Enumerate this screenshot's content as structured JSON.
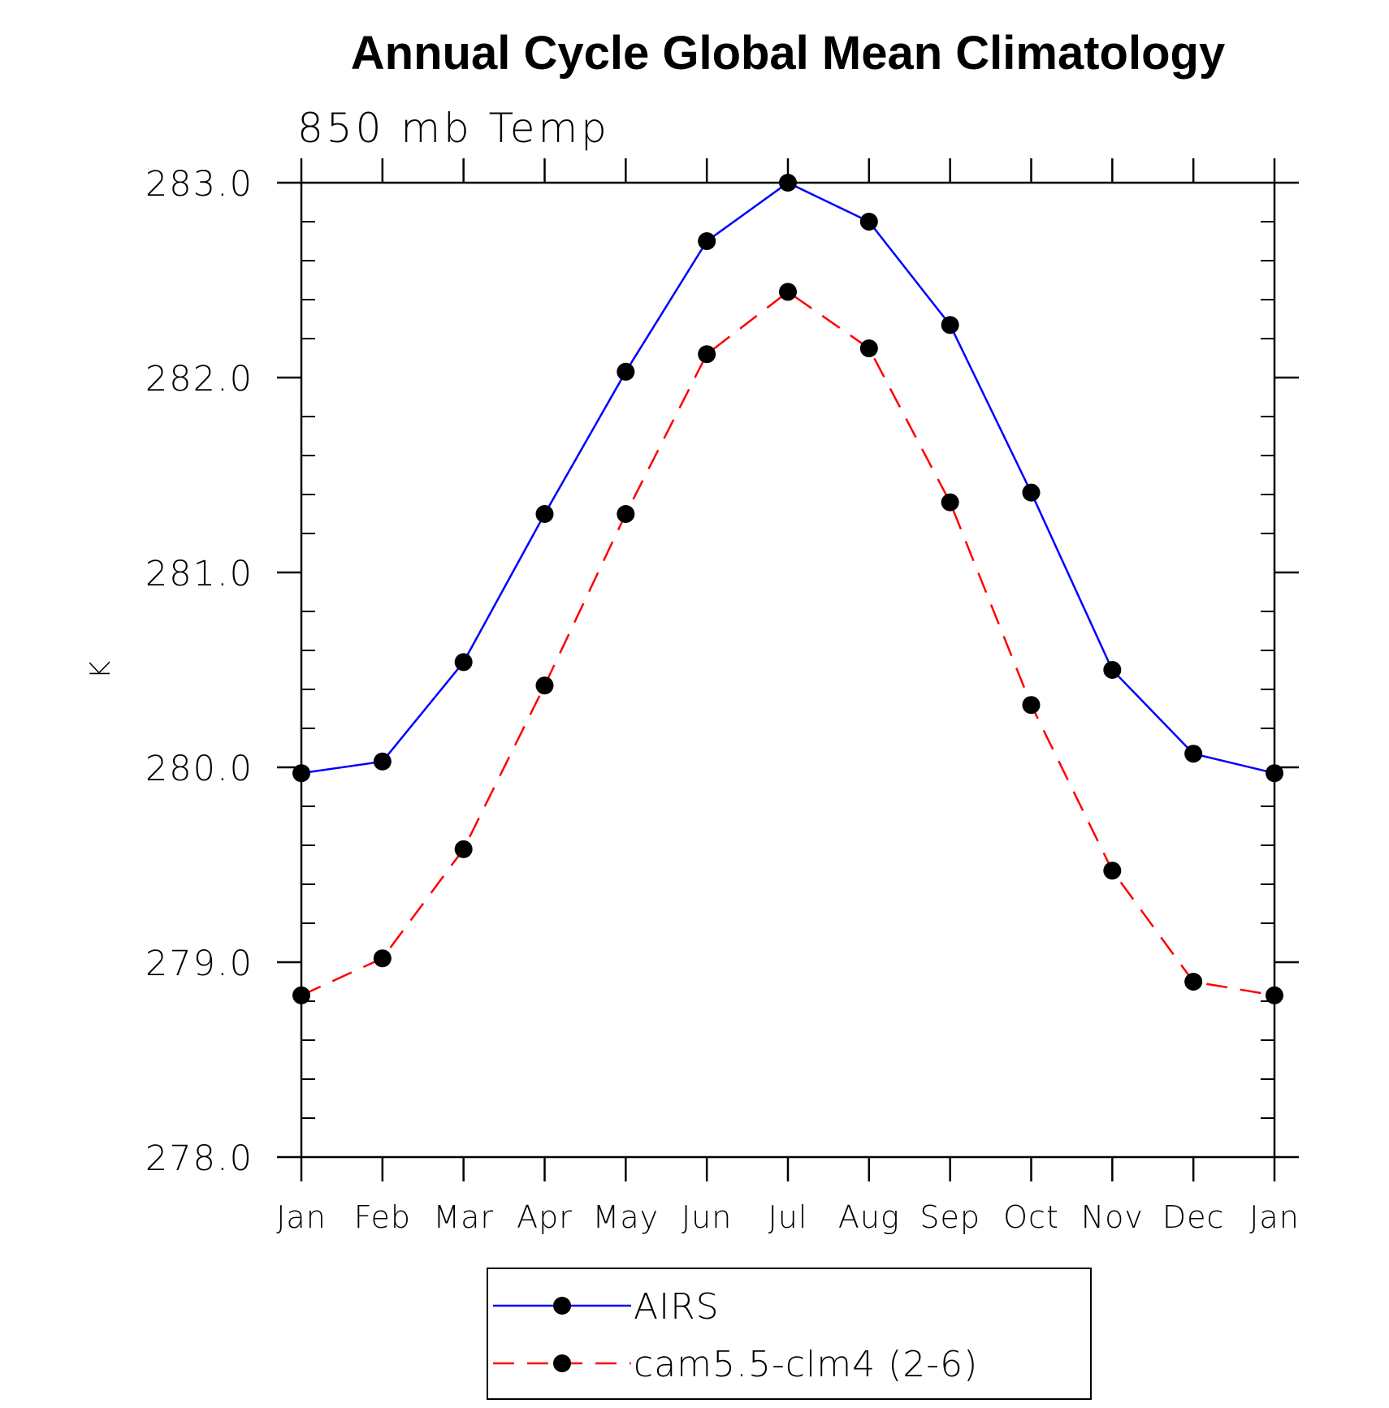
{
  "chart_data": {
    "type": "line",
    "title": "Annual Cycle Global Mean Climatology",
    "subtitle": "850 mb Temp",
    "xlabel": "",
    "ylabel": "K",
    "categories": [
      "Jan",
      "Feb",
      "Mar",
      "Apr",
      "May",
      "Jun",
      "Jul",
      "Aug",
      "Sep",
      "Oct",
      "Nov",
      "Dec",
      "Jan"
    ],
    "ylim": [
      278.0,
      283.0
    ],
    "yticks": [
      "278.0",
      "279.0",
      "280.0",
      "281.0",
      "282.0",
      "283.0"
    ],
    "grid": false,
    "legend_position": "bottom-center",
    "series": [
      {
        "name": "AIRS",
        "color": "#0000ff",
        "line_style": "solid",
        "marker": "filled-circle",
        "values": [
          279.97,
          280.03,
          280.54,
          281.3,
          282.03,
          282.7,
          283.0,
          282.8,
          282.27,
          281.41,
          280.5,
          280.07,
          279.97
        ]
      },
      {
        "name": "cam5.5-clm4 (2-6)",
        "color": "#ff0000",
        "line_style": "dashed",
        "marker": "filled-circle",
        "values": [
          278.83,
          279.02,
          279.58,
          280.42,
          281.3,
          282.12,
          282.44,
          282.15,
          281.36,
          280.32,
          279.47,
          278.9,
          278.83
        ]
      }
    ]
  }
}
